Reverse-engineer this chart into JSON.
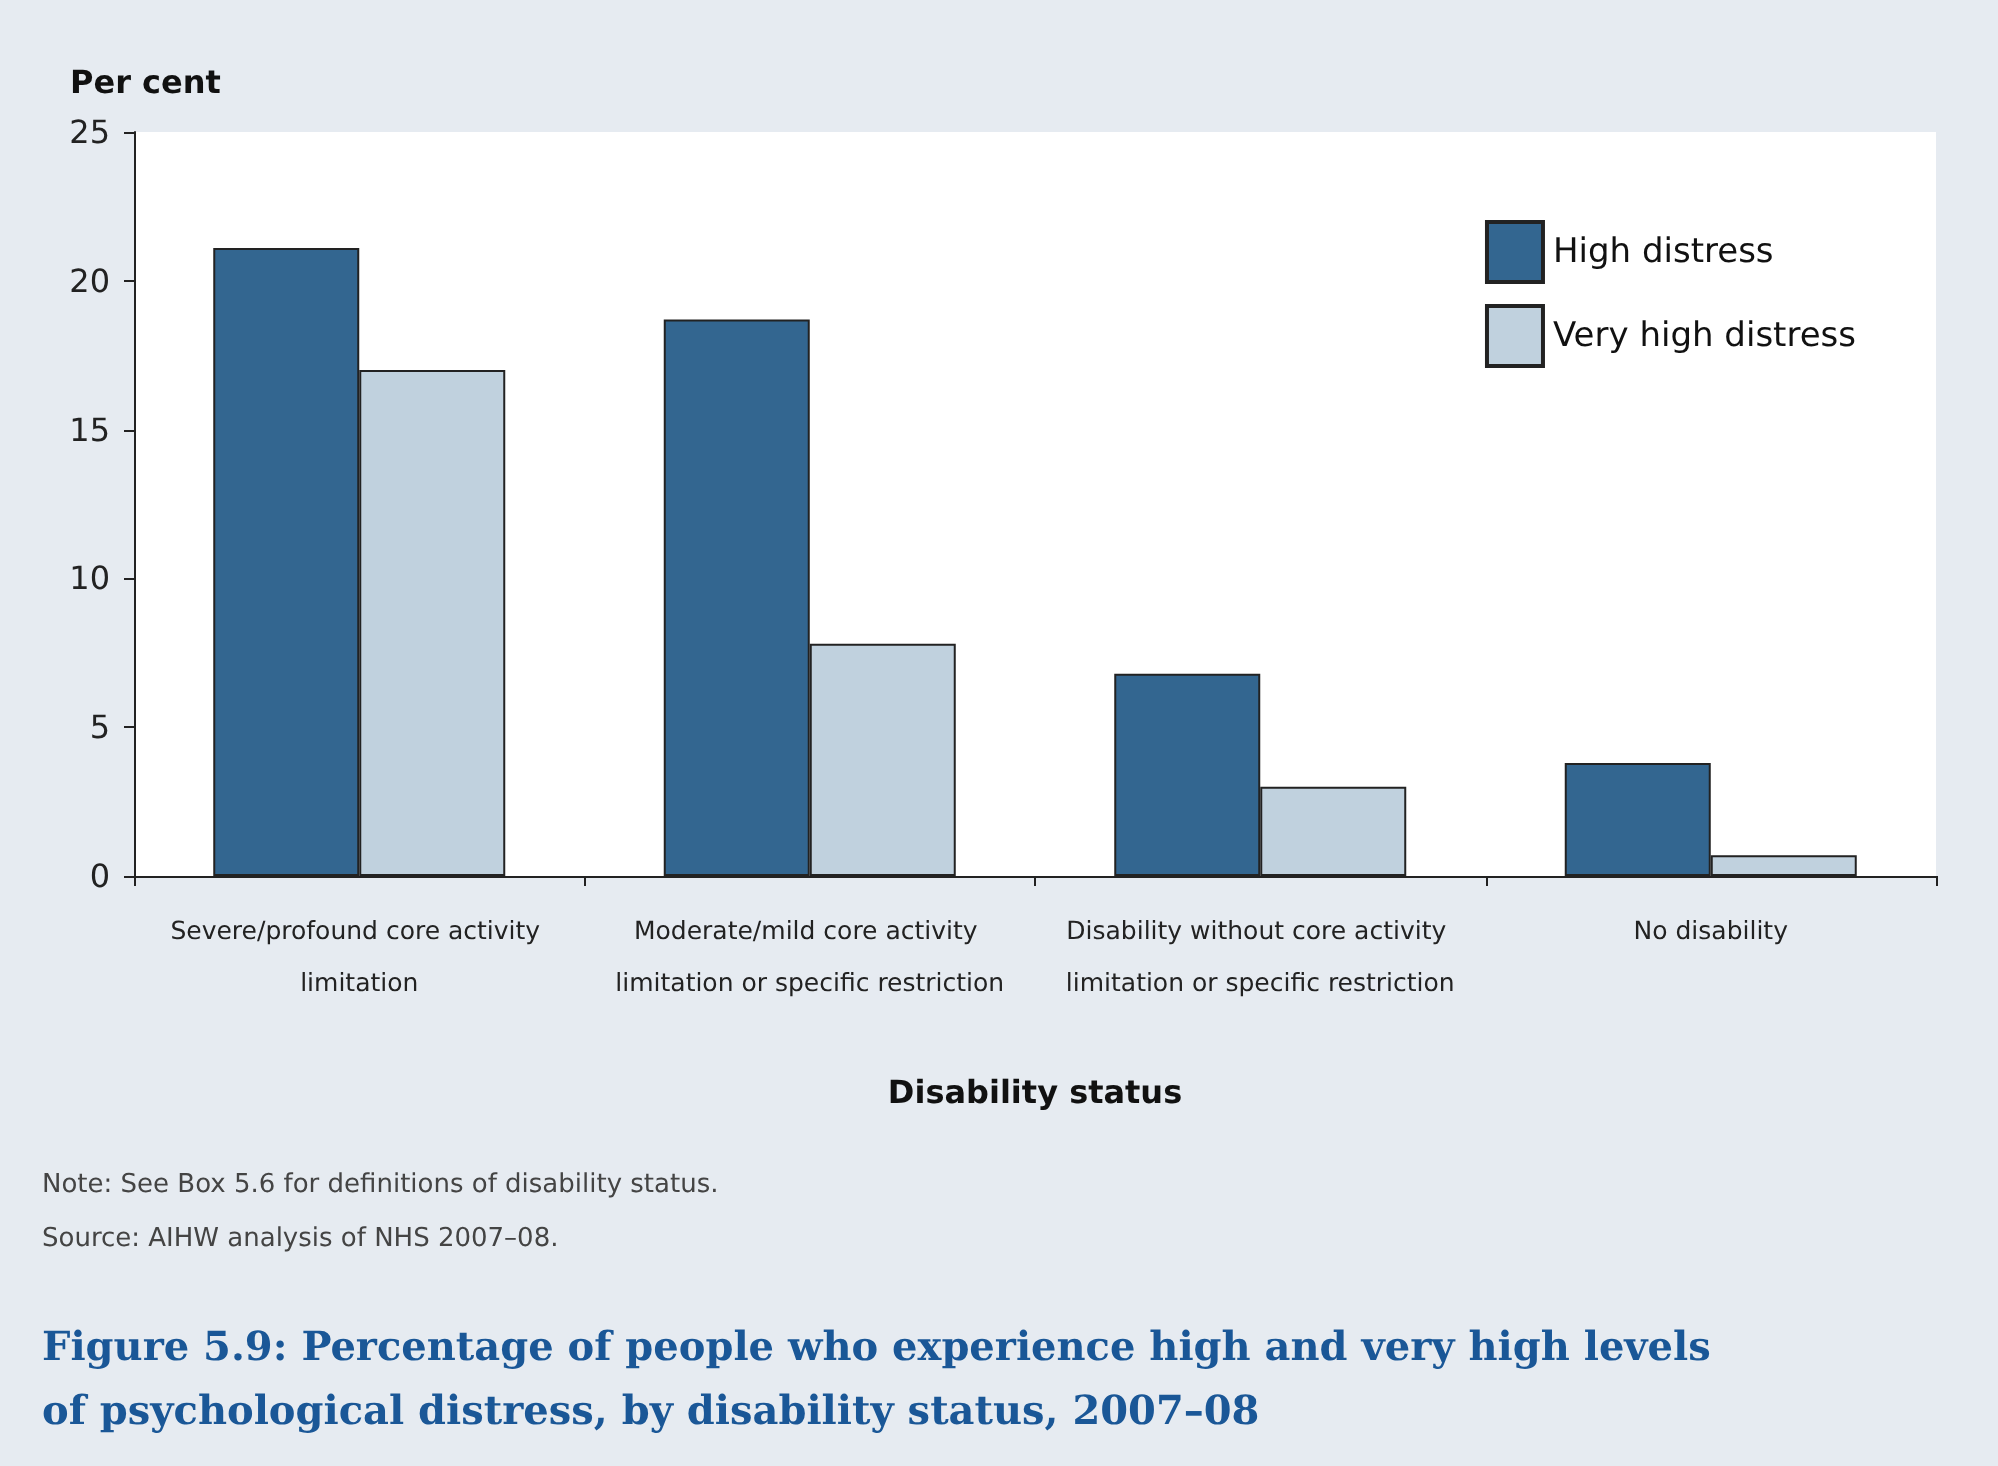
{
  "chart_data": {
    "type": "bar",
    "title": "Figure 5.9: Percentage of people who experience high and very high levels of psychological distress, by disability status, 2007–08",
    "xlabel": "Disability status",
    "ylabel": "Per cent",
    "categories": [
      "Severe/profound core activity limitation",
      "Moderate/mild core activity limitation or specific restriction",
      "Disability without core activity limitation or specific restriction",
      "No disability"
    ],
    "series": [
      {
        "name": "High distress",
        "color": "#336690",
        "values": [
          21.1,
          18.7,
          6.8,
          3.8
        ]
      },
      {
        "name": "Very high distress",
        "color": "#c0d1de",
        "values": [
          17.0,
          7.8,
          3.0,
          0.7
        ]
      }
    ],
    "ylim": [
      0,
      25
    ],
    "yticks": [
      0,
      5,
      10,
      15,
      20,
      25
    ],
    "grid": false,
    "legend": "top right",
    "annotations": [
      "Note: See Box 5.6 for definitions of disability status.",
      "Source: AIHW analysis of NHS 2007–08."
    ]
  }
}
